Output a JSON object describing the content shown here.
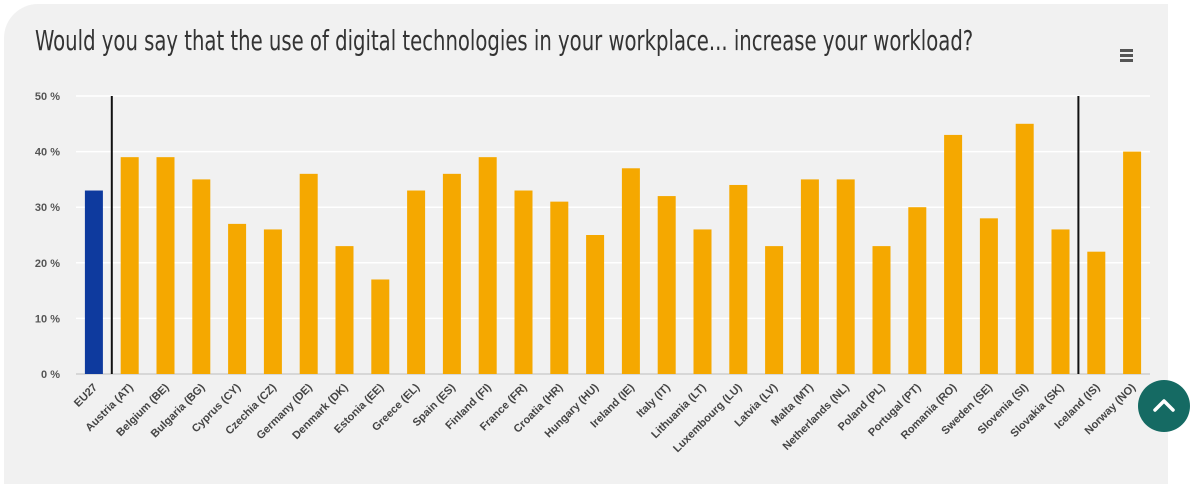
{
  "chart_data": {
    "type": "bar",
    "title": "Would you say that the use of digital technologies in your workplace... increase your workload?",
    "categories": [
      "EU27",
      "Austria (AT)",
      "Belgium (BE)",
      "Bulgaria (BG)",
      "Cyprus (CY)",
      "Czechia (CZ)",
      "Germany (DE)",
      "Denmark (DK)",
      "Estonia (EE)",
      "Greece (EL)",
      "Spain (ES)",
      "Finland (FI)",
      "France (FR)",
      "Croatia (HR)",
      "Hungary (HU)",
      "Ireland (IE)",
      "Italy (IT)",
      "Lithuania (LT)",
      "Luxembourg (LU)",
      "Latvia (LV)",
      "Malta (MT)",
      "Netherlands (NL)",
      "Poland (PL)",
      "Portugal (PT)",
      "Romania (RO)",
      "Sweden (SE)",
      "Slovenia (SI)",
      "Slovakia (SK)",
      "Iceland (IS)",
      "Norway (NO)"
    ],
    "values": [
      33,
      39,
      39,
      35,
      27,
      26,
      36,
      23,
      17,
      33,
      36,
      39,
      33,
      31,
      25,
      37,
      32,
      26,
      34,
      23,
      35,
      35,
      23,
      30,
      43,
      28,
      45,
      26,
      22,
      40
    ],
    "ylim": [
      0,
      50
    ],
    "yticks": [
      "0 %",
      "10 %",
      "20 %",
      "30 %",
      "40 %",
      "50 %"
    ],
    "grid": true,
    "highlight_color": "#0e3a9e",
    "bar_color": "#f5a800",
    "separators_after": [
      "EU27",
      "Slovakia (SK)"
    ]
  },
  "ui": {
    "menu_icon": "hamburger-menu-icon",
    "scroll_icon": "chevron-up-icon",
    "accent_color": "#156a63"
  }
}
